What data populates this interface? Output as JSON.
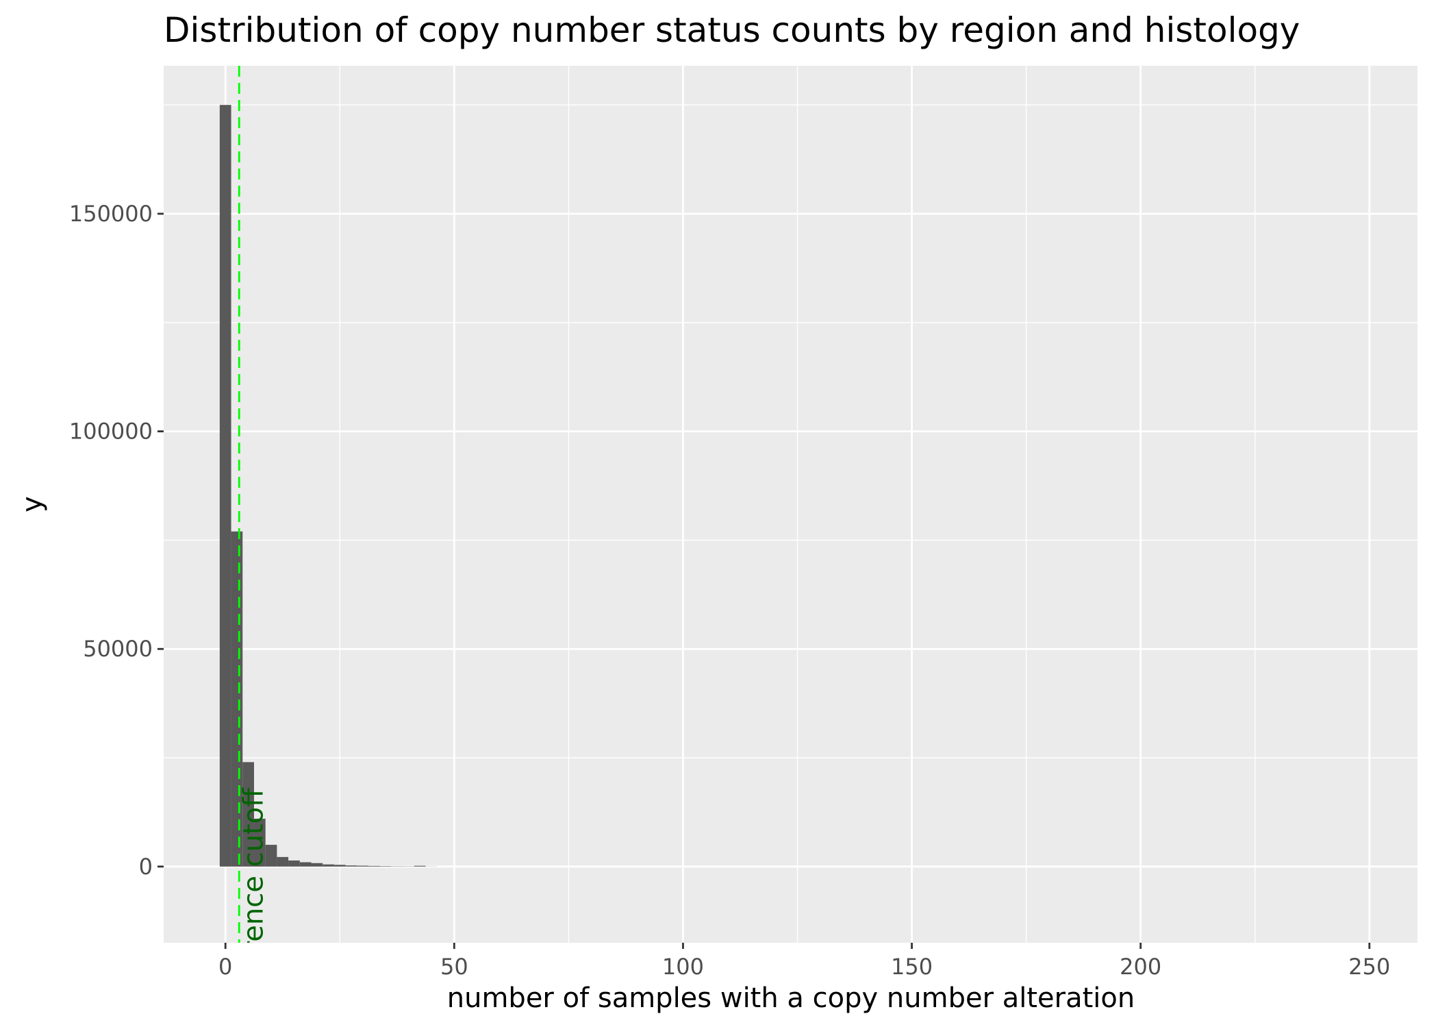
{
  "chart_data": {
    "type": "bar",
    "title": "Distribution of copy number status counts by region and histology",
    "xlabel": "number of samples with a copy number alteration",
    "ylabel": "y",
    "xlim": [
      -13.5,
      260.5
    ],
    "ylim": [
      -17500,
      184000
    ],
    "x_ticks": [
      0,
      50,
      100,
      150,
      200,
      250
    ],
    "y_ticks": [
      0,
      50000,
      100000,
      150000
    ],
    "x_tick_labels": [
      "0",
      "50",
      "100",
      "150",
      "200",
      "250"
    ],
    "y_tick_labels": [
      "0",
      "50000",
      "100000",
      "150000"
    ],
    "grid": true,
    "background_color": "#EBEBEB",
    "bar_color": "#595959",
    "bins": [
      {
        "x0": -1.25,
        "x1": 1.25,
        "count": 175000
      },
      {
        "x0": 1.25,
        "x1": 3.75,
        "count": 77000
      },
      {
        "x0": 3.75,
        "x1": 6.25,
        "count": 24000
      },
      {
        "x0": 6.25,
        "x1": 8.75,
        "count": 11000
      },
      {
        "x0": 8.75,
        "x1": 11.25,
        "count": 5000
      },
      {
        "x0": 11.25,
        "x1": 13.75,
        "count": 2200
      },
      {
        "x0": 13.75,
        "x1": 16.25,
        "count": 1400
      },
      {
        "x0": 16.25,
        "x1": 18.75,
        "count": 1000
      },
      {
        "x0": 18.75,
        "x1": 21.25,
        "count": 800
      },
      {
        "x0": 21.25,
        "x1": 23.75,
        "count": 500
      },
      {
        "x0": 23.75,
        "x1": 26.25,
        "count": 400
      },
      {
        "x0": 26.25,
        "x1": 28.75,
        "count": 250
      },
      {
        "x0": 28.75,
        "x1": 31.25,
        "count": 200
      },
      {
        "x0": 31.25,
        "x1": 33.75,
        "count": 150
      },
      {
        "x0": 33.75,
        "x1": 36.25,
        "count": 100
      },
      {
        "x0": 36.25,
        "x1": 38.75,
        "count": 60
      },
      {
        "x0": 38.75,
        "x1": 41.25,
        "count": 50
      },
      {
        "x0": 41.25,
        "x1": 43.75,
        "count": 180
      },
      {
        "x0": 43.75,
        "x1": 46.25,
        "count": 30
      }
    ],
    "reference_line": {
      "x": 3,
      "color": "#00FF00",
      "style": "dashed",
      "label": "rrence cutoff",
      "label_color": "#006400"
    }
  }
}
